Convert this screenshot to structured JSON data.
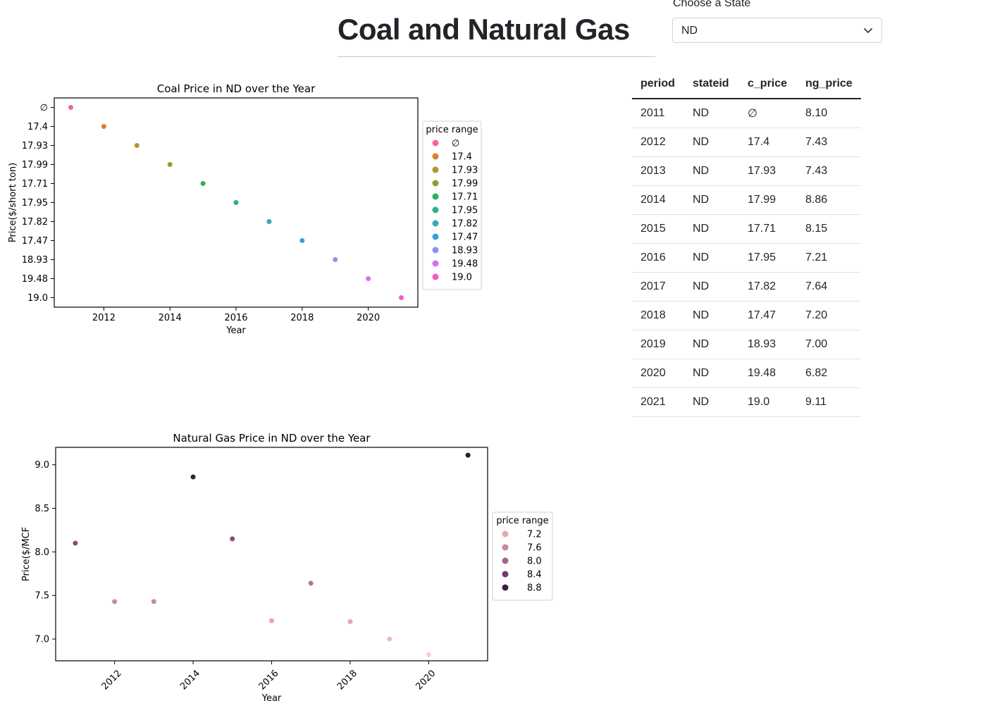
{
  "page": {
    "title": "Coal and Natural Gas"
  },
  "state_select": {
    "label": "Choose a State",
    "value": "ND"
  },
  "table": {
    "columns": [
      "period",
      "stateid",
      "c_price",
      "ng_price"
    ],
    "rows": [
      [
        "2011",
        "ND",
        "∅",
        "8.10"
      ],
      [
        "2012",
        "ND",
        "17.4",
        "7.43"
      ],
      [
        "2013",
        "ND",
        "17.93",
        "7.43"
      ],
      [
        "2014",
        "ND",
        "17.99",
        "8.86"
      ],
      [
        "2015",
        "ND",
        "17.71",
        "8.15"
      ],
      [
        "2016",
        "ND",
        "17.95",
        "7.21"
      ],
      [
        "2017",
        "ND",
        "17.82",
        "7.64"
      ],
      [
        "2018",
        "ND",
        "17.47",
        "7.20"
      ],
      [
        "2019",
        "ND",
        "18.93",
        "7.00"
      ],
      [
        "2020",
        "ND",
        "19.48",
        "6.82"
      ],
      [
        "2021",
        "ND",
        "19.0",
        "9.11"
      ]
    ]
  },
  "chart_data": [
    {
      "type": "scatter",
      "title": "Coal Price in ND over the Year",
      "xlabel": "Year",
      "ylabel": "Price($/short ton)",
      "x_ticks": [
        2012,
        2014,
        2016,
        2018,
        2020
      ],
      "xlim": [
        2010.5,
        2021.5
      ],
      "y_axis_kind": "categorical",
      "y_categories": [
        "∅",
        "17.4",
        "17.93",
        "17.99",
        "17.71",
        "17.95",
        "17.82",
        "17.47",
        "18.93",
        "19.48",
        "19.0"
      ],
      "points": [
        {
          "x": 2011,
          "y": "∅",
          "color": "#f2688e"
        },
        {
          "x": 2012,
          "y": "17.4",
          "color": "#d9812f"
        },
        {
          "x": 2013,
          "y": "17.93",
          "color": "#b39631"
        },
        {
          "x": 2014,
          "y": "17.99",
          "color": "#8aa32f"
        },
        {
          "x": 2015,
          "y": "17.71",
          "color": "#2eb057"
        },
        {
          "x": 2016,
          "y": "17.95",
          "color": "#32ab92"
        },
        {
          "x": 2017,
          "y": "17.82",
          "color": "#33a9bb"
        },
        {
          "x": 2018,
          "y": "17.47",
          "color": "#399fdb"
        },
        {
          "x": 2019,
          "y": "18.93",
          "color": "#8e92f0"
        },
        {
          "x": 2020,
          "y": "19.48",
          "color": "#d86df0"
        },
        {
          "x": 2021,
          "y": "19.0",
          "color": "#ef5fc5"
        }
      ],
      "legend": {
        "title": "price range",
        "placement": "right",
        "entries": [
          {
            "label": "∅",
            "color": "#f2688e"
          },
          {
            "label": "17.4",
            "color": "#d9812f"
          },
          {
            "label": "17.93",
            "color": "#b39631"
          },
          {
            "label": "17.99",
            "color": "#8aa32f"
          },
          {
            "label": "17.71",
            "color": "#2eb057"
          },
          {
            "label": "17.95",
            "color": "#32ab92"
          },
          {
            "label": "17.82",
            "color": "#33a9bb"
          },
          {
            "label": "17.47",
            "color": "#399fdb"
          },
          {
            "label": "18.93",
            "color": "#8e92f0"
          },
          {
            "label": "19.48",
            "color": "#d86df0"
          },
          {
            "label": "19.0",
            "color": "#ef5fc5"
          }
        ]
      }
    },
    {
      "type": "scatter",
      "title": "Natural Gas Price in ND over the Year",
      "xlabel": "Year",
      "ylabel": "Price($/MCF",
      "x_ticks": [
        2012,
        2014,
        2016,
        2018,
        2020
      ],
      "x_tick_rotation": -45,
      "xlim": [
        2010.5,
        2021.5
      ],
      "y_ticks": [
        "7.0",
        "7.5",
        "8.0",
        "8.5",
        "9.0"
      ],
      "ylim": [
        6.75,
        9.2
      ],
      "points": [
        {
          "x": 2011,
          "y": 8.1,
          "color": "#8c4a7c"
        },
        {
          "x": 2012,
          "y": 7.43,
          "color": "#c98a9e"
        },
        {
          "x": 2013,
          "y": 7.43,
          "color": "#c98a9e"
        },
        {
          "x": 2014,
          "y": 8.86,
          "color": "#3a1f45"
        },
        {
          "x": 2015,
          "y": 8.15,
          "color": "#8c4a7c"
        },
        {
          "x": 2016,
          "y": 7.21,
          "color": "#e6a9aa"
        },
        {
          "x": 2017,
          "y": 7.64,
          "color": "#b77390"
        },
        {
          "x": 2018,
          "y": 7.2,
          "color": "#e6a9aa"
        },
        {
          "x": 2019,
          "y": 7.0,
          "color": "#efbcb5"
        },
        {
          "x": 2020,
          "y": 6.82,
          "color": "#f5d2c8"
        },
        {
          "x": 2021,
          "y": 9.11,
          "color": "#2c1536"
        }
      ],
      "legend": {
        "title": "price range",
        "placement": "right",
        "entries": [
          {
            "label": "7.2",
            "color": "#e6a9aa"
          },
          {
            "label": "7.6",
            "color": "#c98a9e"
          },
          {
            "label": "8.0",
            "color": "#a9648e"
          },
          {
            "label": "8.4",
            "color": "#6e3b6e"
          },
          {
            "label": "8.8",
            "color": "#3a1f45"
          }
        ]
      }
    }
  ]
}
